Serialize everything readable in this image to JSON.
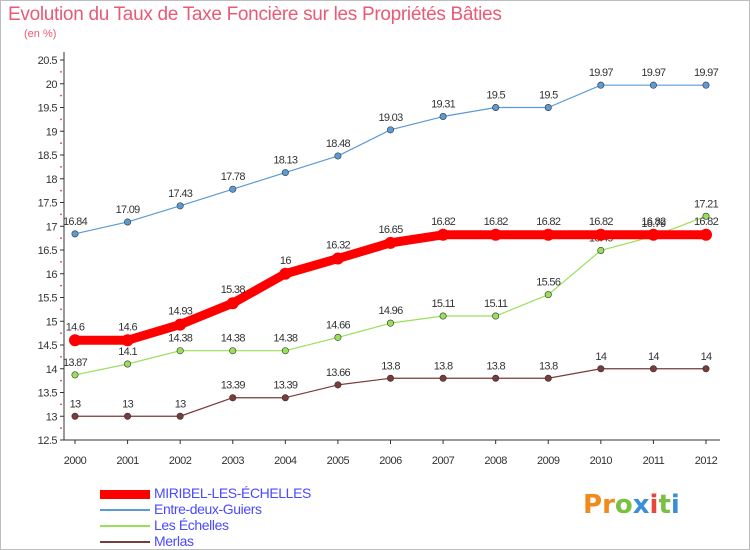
{
  "title": "Evolution du Taux de Taxe Foncière sur les Propriétés Bâties",
  "unit": "(en %)",
  "logo": {
    "text": "Proxiti",
    "colors": [
      "#f08a1c",
      "#f08a1c",
      "#7ac143",
      "#3a8fd8",
      "#e8463a",
      "#7ac143",
      "#3a8fd8"
    ]
  },
  "chart_data": {
    "type": "line",
    "x": [
      "2000",
      "2001",
      "2002",
      "2003",
      "2004",
      "2005",
      "2006",
      "2007",
      "2008",
      "2009",
      "2010",
      "2011",
      "2012"
    ],
    "ylim": [
      12.5,
      20.5
    ],
    "yticks": [
      "12.5",
      "13",
      "13.5",
      "14",
      "14.5",
      "15",
      "15.5",
      "16",
      "16.5",
      "17",
      "17.5",
      "18",
      "18.5",
      "19",
      "19.5",
      "20",
      "20.5"
    ],
    "grid": false,
    "legend_position": "bottom-left",
    "series": [
      {
        "name": "MIRIBEL-LES-ÉCHELLES",
        "color": "#ff0000",
        "values": [
          14.6,
          14.6,
          14.93,
          15.38,
          16,
          16.32,
          16.65,
          16.82,
          16.82,
          16.82,
          16.82,
          16.82,
          16.82
        ],
        "labels": [
          "14.6",
          "14.6",
          "14.93",
          "15.38",
          "16",
          "16.32",
          "16.65",
          "16.82",
          "16.82",
          "16.82",
          "16.82",
          "16.82",
          "16.82"
        ]
      },
      {
        "name": "Entre-deux-Guiers",
        "color": "#5b9bd5",
        "values": [
          16.84,
          17.09,
          17.43,
          17.78,
          18.13,
          18.48,
          19.03,
          19.31,
          19.5,
          19.5,
          19.97,
          19.97,
          19.97
        ],
        "labels": [
          "16.84",
          "17.09",
          "17.43",
          "17.78",
          "18.13",
          "18.48",
          "19.03",
          "19.31",
          "19.5",
          "19.5",
          "19.97",
          "19.97",
          "19.97"
        ]
      },
      {
        "name": "Les Échelles",
        "color": "#99e05a",
        "values": [
          13.87,
          14.1,
          14.38,
          14.38,
          14.38,
          14.66,
          14.96,
          15.11,
          15.11,
          15.56,
          16.49,
          16.79,
          17.21
        ],
        "labels": [
          "13.87",
          "14.1",
          "14.38",
          "14.38",
          "14.38",
          "14.66",
          "14.96",
          "15.11",
          "15.11",
          "15.56",
          "16.49",
          "16.79",
          "17.21"
        ]
      },
      {
        "name": "Merlas",
        "color": "#7a3b3b",
        "values": [
          13,
          13,
          13,
          13.39,
          13.39,
          13.66,
          13.8,
          13.8,
          13.8,
          13.8,
          14,
          14,
          14
        ],
        "labels": [
          "13",
          "13",
          "13",
          "13.39",
          "13.39",
          "13.66",
          "13.8",
          "13.8",
          "13.8",
          "13.8",
          "14",
          "14",
          "14"
        ]
      }
    ]
  }
}
